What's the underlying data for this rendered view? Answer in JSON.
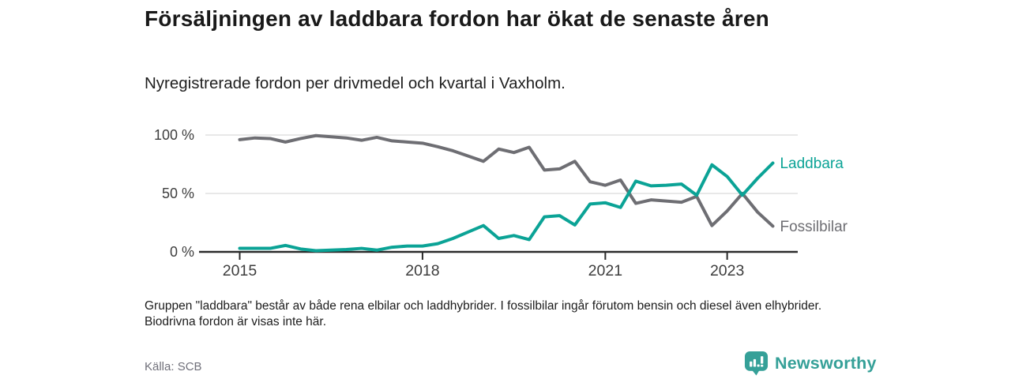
{
  "header": {
    "title": "Försäljningen av laddbara fordon har ökat de senaste åren",
    "subtitle": "Nyregistrerade fordon per drivmedel och kvartal i Vaxholm."
  },
  "chart_data": {
    "type": "line",
    "unit": "%",
    "x": [
      "2015 K1",
      "2015 K2",
      "2015 K3",
      "2015 K4",
      "2016 K1",
      "2016 K2",
      "2016 K3",
      "2016 K4",
      "2017 K1",
      "2017 K2",
      "2017 K3",
      "2017 K4",
      "2018 K1",
      "2018 K2",
      "2018 K3",
      "2018 K4",
      "2019 K1",
      "2019 K2",
      "2019 K3",
      "2019 K4",
      "2020 K1",
      "2020 K2",
      "2020 K3",
      "2020 K4",
      "2021 K1",
      "2021 K2",
      "2021 K3",
      "2021 K4",
      "2022 K1",
      "2022 K2",
      "2022 K3",
      "2022 K4",
      "2023 K1",
      "2023 K2",
      "2023 K3",
      "2023 K4"
    ],
    "series": [
      {
        "name": "Laddbara",
        "color": "#0BA396",
        "values": [
          3,
          3,
          3,
          5.5,
          2.5,
          1,
          1.5,
          2,
          3,
          1.5,
          4,
          5,
          5,
          7,
          11.5,
          17,
          22.5,
          11.5,
          14,
          10.5,
          30,
          31,
          23,
          41,
          42,
          38,
          60.5,
          56.5,
          57,
          58,
          48.5,
          74.5,
          64.5,
          48.5,
          63,
          76
        ]
      },
      {
        "name": "Fossilbilar",
        "color": "#6E6E73",
        "values": [
          96,
          97.5,
          97,
          94,
          97,
          99.5,
          98.5,
          97.5,
          95.5,
          98,
          95,
          94,
          93,
          90,
          86.5,
          82,
          77.5,
          88,
          85,
          89.5,
          70,
          71,
          77.5,
          60,
          57,
          61.5,
          41.5,
          44.5,
          43.5,
          42.5,
          47.5,
          22.5,
          35,
          50,
          34,
          22
        ]
      }
    ],
    "ylim": [
      0,
      100
    ],
    "yticks": [
      {
        "value": 100,
        "label": "100 %"
      },
      {
        "value": 50,
        "label": "50 %"
      },
      {
        "value": 0,
        "label": "0 %"
      }
    ],
    "xticks": [
      {
        "index": 0,
        "label": "2015"
      },
      {
        "index": 12,
        "label": "2018"
      },
      {
        "index": 24,
        "label": "2021"
      },
      {
        "index": 32,
        "label": "2023"
      }
    ],
    "grid": "horizontal-light",
    "legend": "inline-end-labels"
  },
  "footer": {
    "note": "Gruppen \"laddbara\" består av både rena elbilar och laddhybrider. I fossilbilar ingår förutom bensin och diesel även elhybrider. Biodrivna fordon är visas inte här.",
    "source": "Källa: SCB",
    "logo_text": "Newsworthy"
  },
  "colors": {
    "accent_teal": "#0BA396",
    "line_gray": "#6E6E73",
    "logo_teal": "#35A098",
    "gridline": "#E1E1E1",
    "axis": "#2B2B2B"
  }
}
